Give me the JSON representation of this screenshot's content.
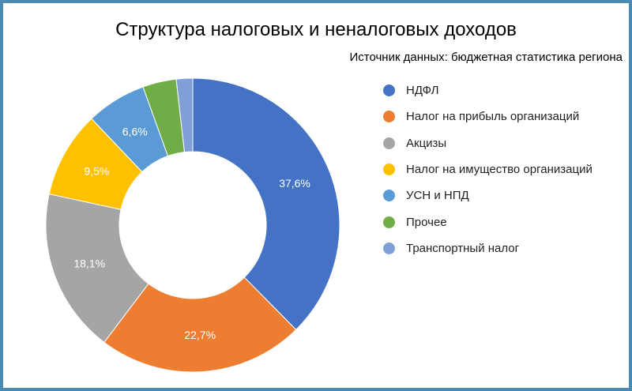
{
  "chart_data": {
    "type": "pie",
    "subtype": "donut",
    "title": "Структура налоговых и неналоговых доходов",
    "subtitle": "Источник данных: бюджетная статистика региона",
    "categories": [
      "НДФЛ",
      "Налог на прибыль организаций",
      "Акцизы",
      "Налог на имущество организаций",
      "УСН и НПД",
      "Прочее",
      "Транспортный налог"
    ],
    "values": [
      37.6,
      22.7,
      18.1,
      9.5,
      6.6,
      3.7,
      1.8
    ],
    "labels": [
      "37,6%",
      "22,7%",
      "18,1%",
      "9,5%",
      "6,6%",
      "",
      ""
    ],
    "colors": [
      "#4472c4",
      "#ed7d31",
      "#a5a5a5",
      "#ffc000",
      "#5b9bd5",
      "#70ad47",
      "#7f9fd6"
    ],
    "legend_position": "right"
  }
}
